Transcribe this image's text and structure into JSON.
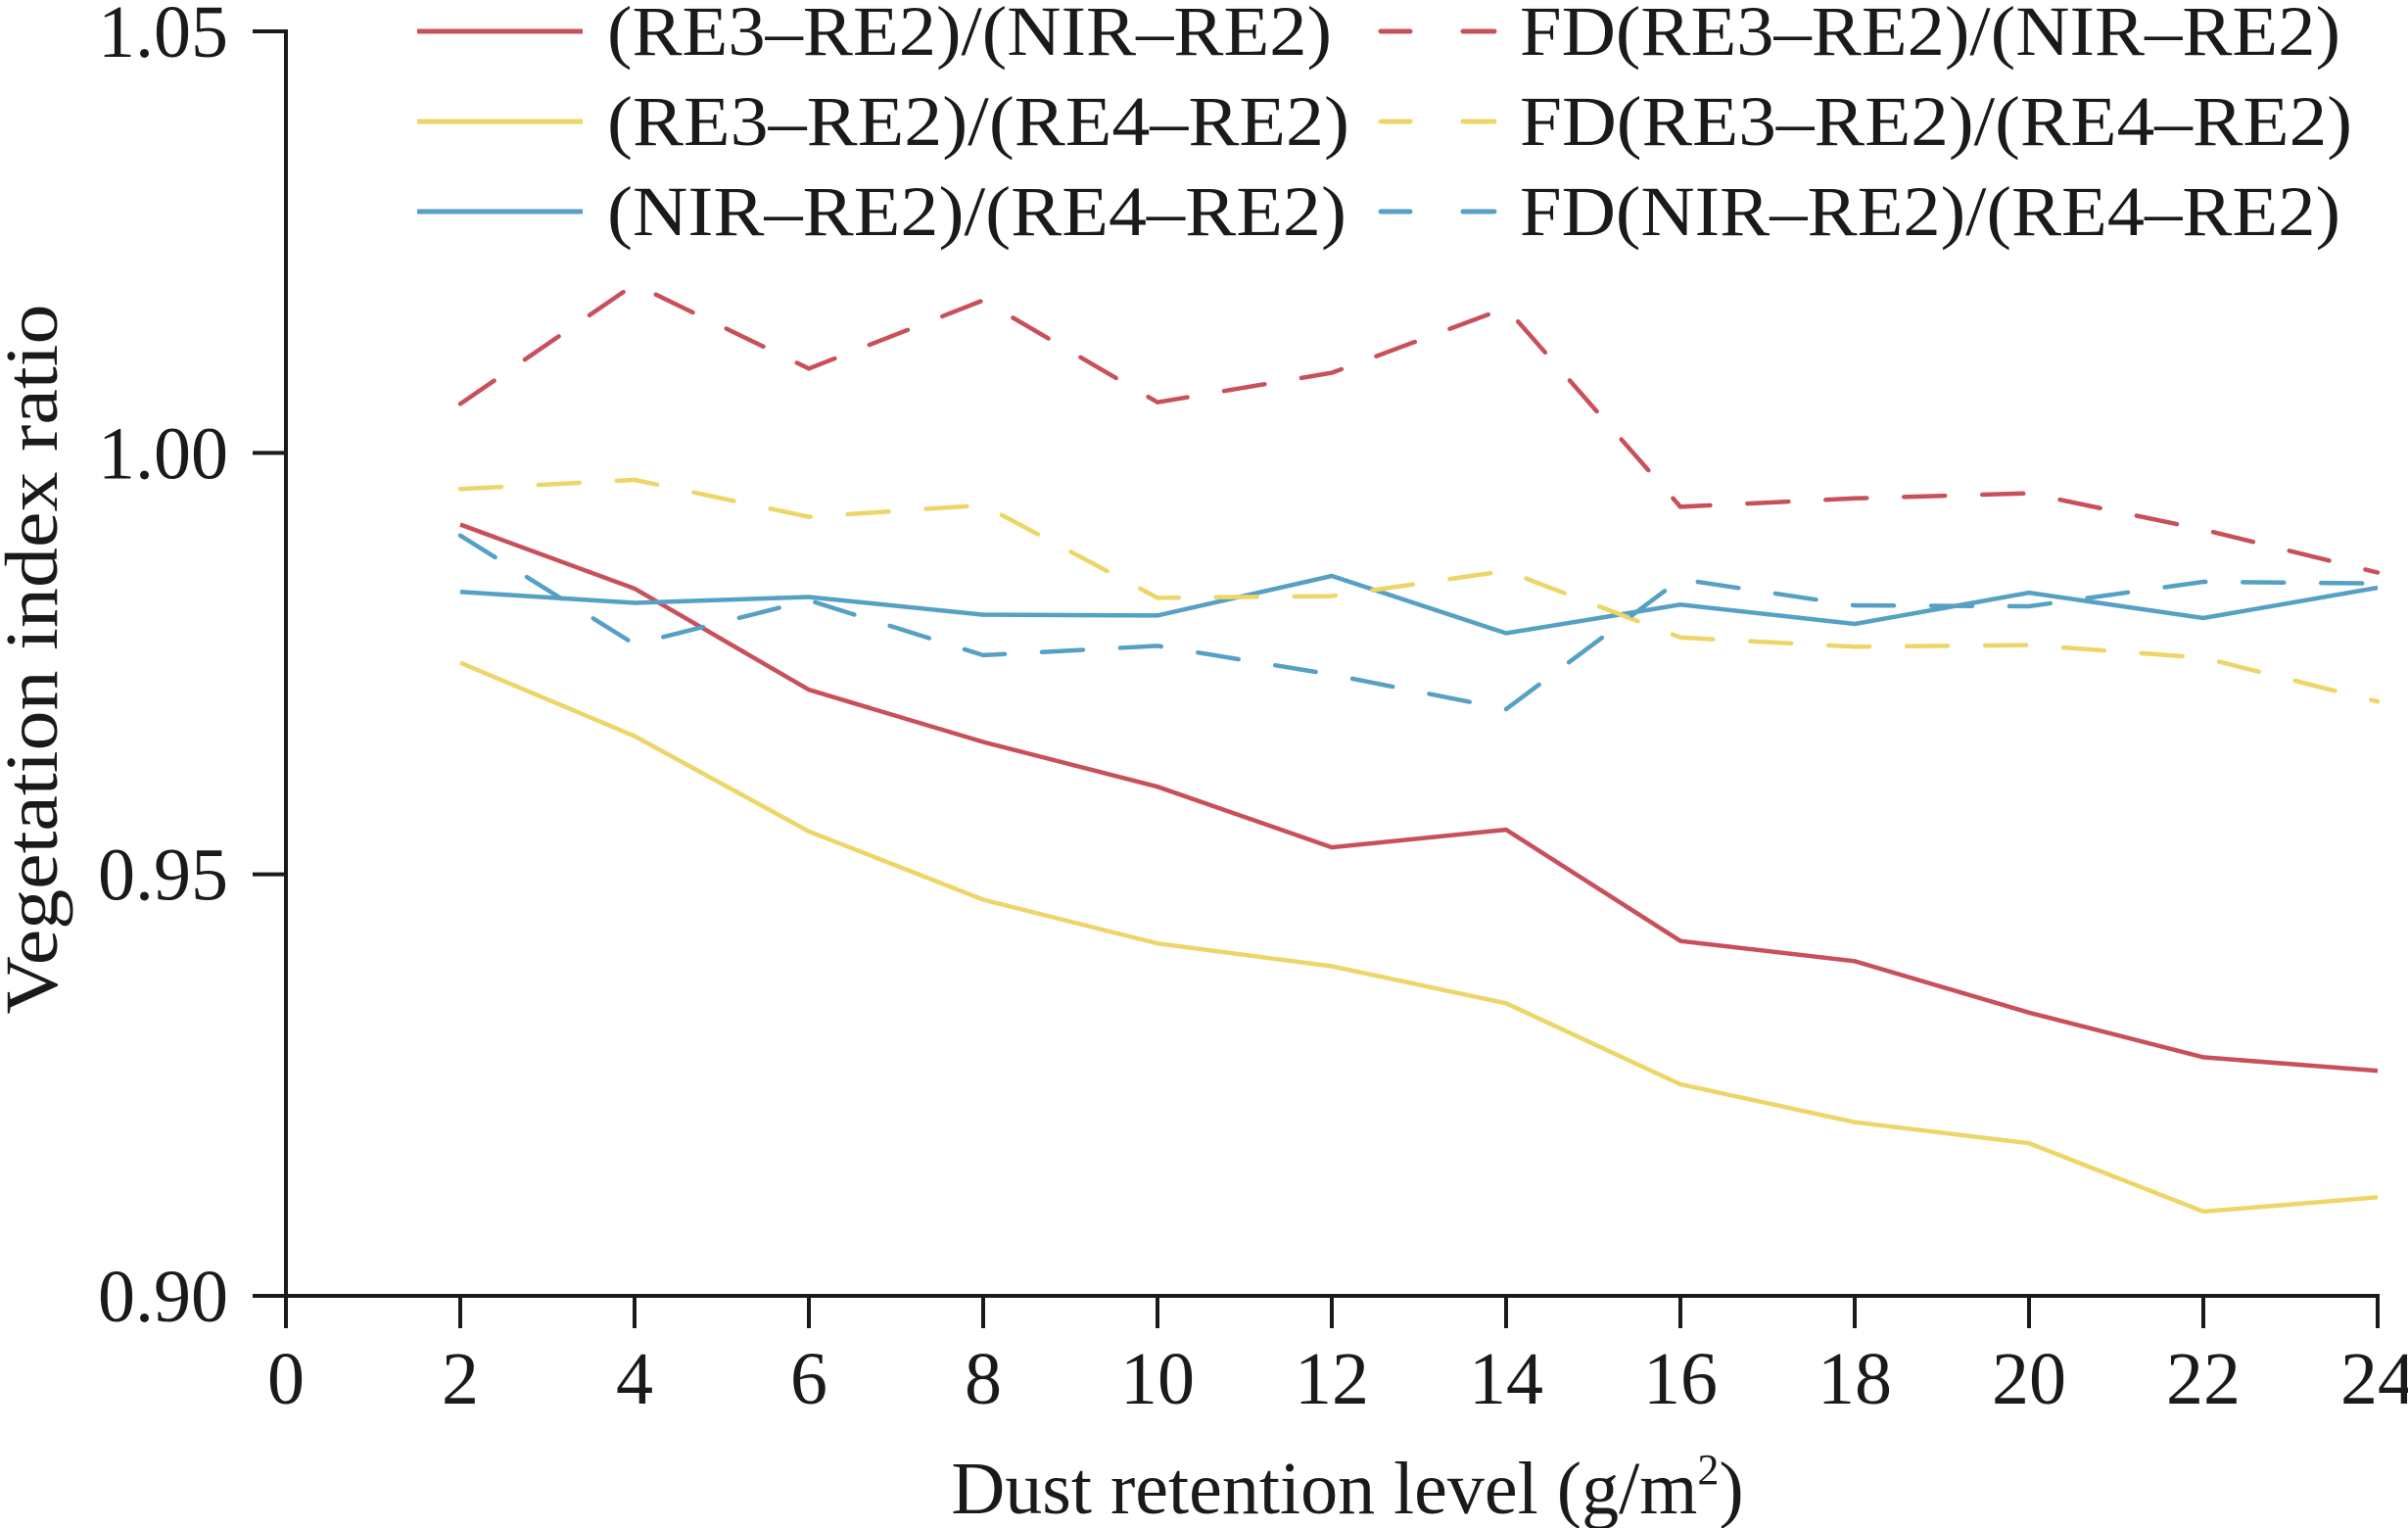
{
  "chart_data": {
    "type": "line",
    "title": "",
    "xlabel": "Dust retention level (g/m²)",
    "xlabel_main": "Dust retention level (g/m",
    "xlabel_sup": "2",
    "xlabel_close": ")",
    "ylabel": "Vegetation index ratio",
    "xlim": [
      0,
      24
    ],
    "ylim": [
      0.9,
      1.05
    ],
    "grid": false,
    "legend_position": "top-right",
    "x_ticks": [
      "0",
      "2",
      "4",
      "6",
      "8",
      "10",
      "12",
      "14",
      "16",
      "18",
      "20",
      "22",
      "24"
    ],
    "y_ticks": [
      "0.90",
      "0.95",
      "1.00",
      "1.05"
    ],
    "x": [
      2,
      4,
      6,
      8,
      10,
      12,
      14,
      16,
      18,
      20,
      22,
      24
    ],
    "series": [
      {
        "name": "(RE3–RE2)/(NIR–RE2)",
        "color": "#C9505A",
        "style": "solid",
        "values": [
          0.9915,
          0.9839,
          0.9719,
          0.9657,
          0.9604,
          0.9532,
          0.9553,
          0.9421,
          0.9397,
          0.9336,
          0.9283,
          0.9267
        ]
      },
      {
        "name": "(RE3–RE2)/(RE4–RE2)",
        "color": "#EDD567",
        "style": "solid",
        "values": [
          0.9751,
          0.9664,
          0.9551,
          0.947,
          0.9418,
          0.9391,
          0.9347,
          0.9251,
          0.9206,
          0.9181,
          0.91,
          0.9117
        ]
      },
      {
        "name": "(NIR–RE2)/(RE4–RE2)",
        "color": "#55A0C4",
        "style": "solid",
        "values": [
          0.9835,
          0.9822,
          0.9829,
          0.9808,
          0.9807,
          0.9854,
          0.9786,
          0.982,
          0.9797,
          0.9834,
          0.9804,
          0.984
        ]
      },
      {
        "name": "FD(RE3–RE2)/(NIR–RE2)",
        "color": "#C9505A",
        "style": "dashed",
        "values": [
          1.0058,
          1.02,
          1.01,
          1.0181,
          1.006,
          1.0095,
          1.0172,
          0.9936,
          0.9946,
          0.9952,
          0.9909,
          0.9858
        ]
      },
      {
        "name": "FD(RE3–RE2)/(RE4–RE2)",
        "color": "#EDD567",
        "style": "dashed",
        "values": [
          0.9957,
          0.9968,
          0.9924,
          0.9938,
          0.9828,
          0.983,
          0.986,
          0.9781,
          0.977,
          0.9772,
          0.9757,
          0.9705
        ]
      },
      {
        "name": "FD(NIR–RE2)/(RE4–RE2)",
        "color": "#55A0C4",
        "style": "dashed",
        "values": [
          0.9902,
          0.9773,
          0.9825,
          0.976,
          0.9771,
          0.9737,
          0.9696,
          0.985,
          0.9819,
          0.9818,
          0.9847,
          0.9845
        ]
      }
    ]
  }
}
